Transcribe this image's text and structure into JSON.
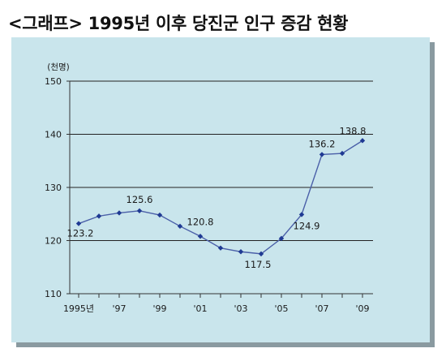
{
  "title": "<그래프> 1995년 이후 당진군 인구 증감 현황",
  "colors": {
    "panel": "#c9e5ec",
    "line": "#4a5fa8",
    "marker": "#1f3a93",
    "axis": "#333333"
  },
  "chart_data": {
    "type": "line",
    "title": "<그래프> 1995년 이후 당진군 인구 증감 현황",
    "unit_label": "(천명)",
    "xlabel": "",
    "ylabel": "",
    "ylim": [
      110,
      150
    ],
    "y_ticks": [
      110,
      120,
      130,
      140,
      150
    ],
    "grid": true,
    "x": [
      1995,
      1996,
      1997,
      1998,
      1999,
      2000,
      2001,
      2002,
      2003,
      2004,
      2005,
      2006,
      2007,
      2008,
      2009
    ],
    "x_tick_labels": [
      {
        "x": 1995,
        "label": "1995년"
      },
      {
        "x": 1997,
        "label": "'97"
      },
      {
        "x": 1999,
        "label": "'99"
      },
      {
        "x": 2001,
        "label": "'01"
      },
      {
        "x": 2003,
        "label": "'03"
      },
      {
        "x": 2005,
        "label": "'05"
      },
      {
        "x": 2007,
        "label": "'07"
      },
      {
        "x": 2009,
        "label": "'09"
      }
    ],
    "series": [
      {
        "values": [
          123.2,
          124.6,
          125.2,
          125.6,
          124.8,
          122.7,
          120.8,
          118.6,
          117.9,
          117.5,
          120.4,
          124.9,
          136.2,
          136.4,
          138.8
        ]
      }
    ],
    "data_labels": [
      {
        "x": 1995,
        "text": "123.2"
      },
      {
        "x": 1998,
        "text": "125.6"
      },
      {
        "x": 2001,
        "text": "120.8"
      },
      {
        "x": 2004,
        "text": "117.5"
      },
      {
        "x": 2006,
        "text": "124.9"
      },
      {
        "x": 2007,
        "text": "136.2"
      },
      {
        "x": 2009,
        "text": "138.8"
      }
    ]
  }
}
